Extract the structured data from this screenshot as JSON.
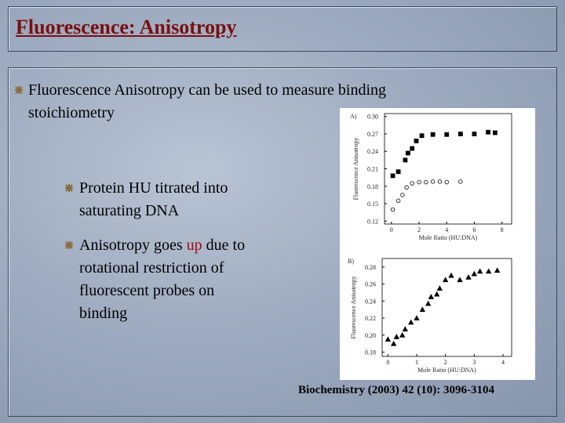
{
  "header": {
    "title": "Fluorescence: Anisotropy"
  },
  "bullets": [
    {
      "lines": [
        "Fluorescence Anisotropy can be used to measure binding",
        "stoichiometry"
      ]
    },
    {
      "lines": [
        "Protein HU titrated into",
        "saturating DNA"
      ]
    },
    {
      "first_line": [
        "Anisotropy goes ",
        "up",
        " due to"
      ],
      "lines": [
        "rotational restriction of",
        "fluorescent probes on",
        "binding"
      ]
    }
  ],
  "figure": {
    "charts": [
      {
        "type": "scatter",
        "panel": "A)",
        "xlabel": "Mole Ratio (HU:DNA)",
        "ylabel": "Fluorescence Anisotropy",
        "xlim": [
          -0.5,
          8.7
        ],
        "xticks": [
          0,
          2,
          4,
          6,
          8
        ],
        "ylim": [
          0.115,
          0.305
        ],
        "yticks": [
          0.12,
          0.15,
          0.18,
          0.21,
          0.24,
          0.27,
          {
            "value": 0.3,
            "label": "0.30"
          }
        ],
        "series": [
          {
            "marker": "square",
            "color": "#000000",
            "filled": true,
            "x": [
              0.1,
              0.5,
              1,
              1.2,
              1.5,
              1.8,
              2.2,
              3,
              4,
              5,
              6,
              7,
              7.5
            ],
            "values": [
              0.198,
              0.205,
              0.225,
              0.237,
              0.245,
              0.258,
              0.267,
              0.269,
              0.269,
              0.27,
              0.27,
              0.273,
              0.272
            ]
          },
          {
            "marker": "circle",
            "color": "#000000",
            "filled": false,
            "x": [
              0.1,
              0.5,
              0.8,
              1.1,
              1.5,
              2,
              2.5,
              3,
              3.5,
              4,
              5
            ],
            "values": [
              0.14,
              0.155,
              0.165,
              0.178,
              0.185,
              0.187,
              0.187,
              0.188,
              0.188,
              0.187,
              0.188
            ]
          }
        ]
      },
      {
        "type": "scatter",
        "panel": "B)",
        "xlabel": "Mole Ratio (HU:DNA)",
        "ylabel": "Fluorescence Anisotropy",
        "xlim": [
          -0.2,
          4.3
        ],
        "xticks": [
          0,
          1,
          2,
          3,
          4
        ],
        "ylim": [
          0.175,
          0.29
        ],
        "yticks": [
          0.18,
          {
            "value": 0.2,
            "label": "0.20"
          },
          0.22,
          0.24,
          0.26,
          0.28
        ],
        "series": [
          {
            "marker": "triangle",
            "color": "#000000",
            "filled": true,
            "x": [
              0,
              0.2,
              0.3,
              0.5,
              0.6,
              0.8,
              1,
              1.2,
              1.4,
              1.5,
              1.7,
              1.8,
              2,
              2.2,
              2.5,
              2.8,
              3,
              3.2,
              3.5,
              3.8
            ],
            "values": [
              0.195,
              0.19,
              0.198,
              0.2,
              0.207,
              0.215,
              0.22,
              0.23,
              0.237,
              0.245,
              0.248,
              0.255,
              0.265,
              0.27,
              0.265,
              0.268,
              0.272,
              0.275,
              0.275,
              0.276
            ]
          }
        ]
      }
    ]
  },
  "citation": "Biochemistry (2003) 42 (10): 3096-3104"
}
